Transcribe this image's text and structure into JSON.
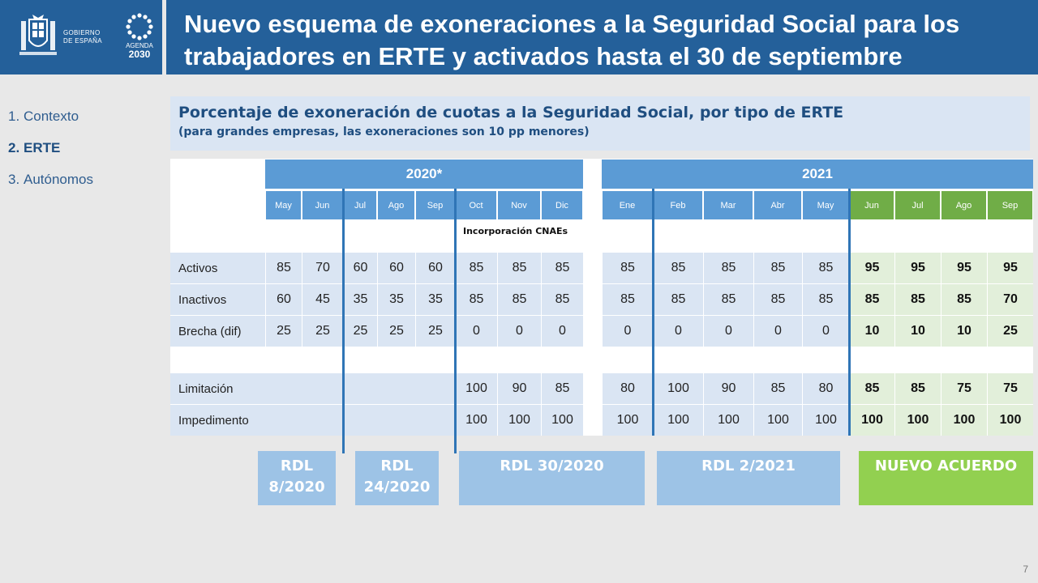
{
  "header": {
    "title": "Nuevo esquema de exoneraciones a la Seguridad Social para los trabajadores en ERTE y activados hasta el 30 de septiembre",
    "gov_line1": "GOBIERNO",
    "gov_line2": "DE ESPAÑA",
    "agenda_label": "AGENDA",
    "agenda_year": "2030"
  },
  "nav": {
    "items": [
      {
        "num": "1.",
        "label": "Contexto"
      },
      {
        "num": "2.",
        "label": "ERTE"
      },
      {
        "num": "3.",
        "label": "Autónomos"
      }
    ]
  },
  "subtitle": {
    "main": "Porcentaje de exoneración de cuotas a la Seguridad Social, por tipo de ERTE",
    "sub": "(para grandes empresas, las exoneraciones son 10 pp menores)"
  },
  "table": {
    "year_2020": "2020*",
    "year_2021": "2021",
    "months_2020": [
      "May",
      "Jun",
      "Jul",
      "Ago",
      "Sep",
      "Oct",
      "Nov",
      "Dic"
    ],
    "months_2021": [
      "Ene",
      "Feb",
      "Mar",
      "Abr",
      "May",
      "Jun",
      "Jul",
      "Ago",
      "Sep"
    ],
    "cnae_note": "Incorporación CNAEs",
    "rows": [
      {
        "label": "Activos",
        "v2020": [
          "85",
          "70",
          "60",
          "60",
          "60",
          "85",
          "85",
          "85"
        ],
        "v2021": [
          "85",
          "85",
          "85",
          "85",
          "85",
          "95",
          "95",
          "95",
          "95"
        ]
      },
      {
        "label": "Inactivos",
        "v2020": [
          "60",
          "45",
          "35",
          "35",
          "35",
          "85",
          "85",
          "85"
        ],
        "v2021": [
          "85",
          "85",
          "85",
          "85",
          "85",
          "85",
          "85",
          "85",
          "70"
        ]
      },
      {
        "label": "Brecha  (dif)",
        "v2020": [
          "25",
          "25",
          "25",
          "25",
          "25",
          "0",
          "0",
          "0"
        ],
        "v2021": [
          "0",
          "0",
          "0",
          "0",
          "0",
          "10",
          "10",
          "10",
          "25"
        ]
      },
      {
        "label": "Limitación",
        "v2020": [
          "",
          "",
          "",
          "",
          "",
          "100",
          "90",
          "85"
        ],
        "v2021": [
          "80",
          "100",
          "90",
          "85",
          "80",
          "85",
          "85",
          "75",
          "75"
        ]
      },
      {
        "label": "Impedimento",
        "v2020": [
          "",
          "",
          "",
          "",
          "",
          "100",
          "100",
          "100"
        ],
        "v2021": [
          "100",
          "100",
          "100",
          "100",
          "100",
          "100",
          "100",
          "100",
          "100"
        ]
      }
    ]
  },
  "laws": [
    "RDL 8/2020",
    "RDL 24/2020",
    "RDL 30/2020",
    "RDL 2/2021",
    "NUEVO ACUERDO"
  ],
  "laws_lines": [
    [
      "RDL",
      "8/2020"
    ],
    [
      "RDL",
      "24/2020"
    ],
    [
      "RDL 30/2020"
    ],
    [
      "RDL 2/2021"
    ],
    [
      "NUEVO ACUERDO"
    ]
  ],
  "page_number": "7",
  "colors": {
    "header_blue": "#24609a",
    "cell_blue": "#5b9bd5",
    "cell_green": "#70ad47",
    "row_blue": "#dae5f3",
    "row_green": "#e2efda",
    "law_blue": "#9dc3e6",
    "law_green": "#92d050"
  }
}
